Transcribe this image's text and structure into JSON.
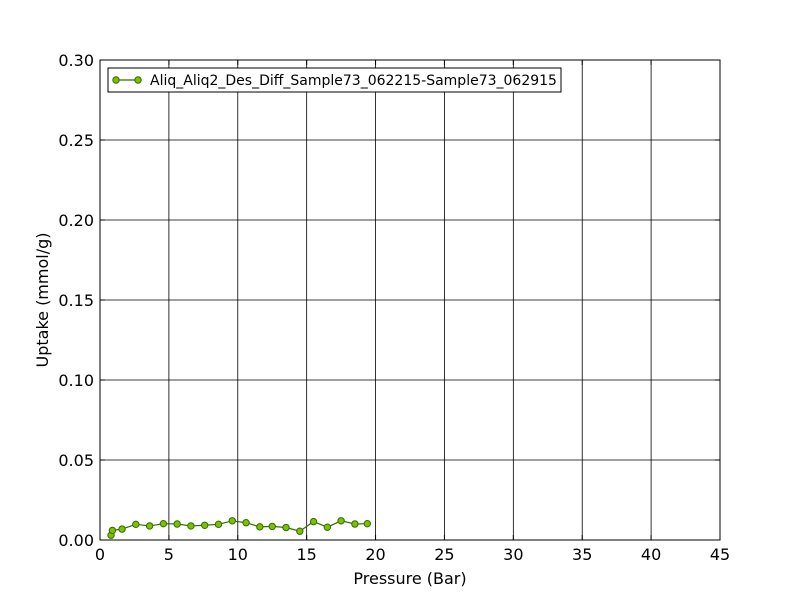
{
  "chart_data": {
    "type": "line",
    "xlabel": "Pressure (Bar)",
    "ylabel": "Uptake (mmol/g)",
    "xlim": [
      0,
      45
    ],
    "ylim": [
      0,
      0.3
    ],
    "xticks": [
      0,
      5,
      10,
      15,
      20,
      25,
      30,
      35,
      40,
      45
    ],
    "yticks": [
      0.0,
      0.05,
      0.1,
      0.15,
      0.2,
      0.25,
      0.3
    ],
    "xtick_labels": [
      "0",
      "5",
      "10",
      "15",
      "20",
      "25",
      "30",
      "35",
      "40",
      "45"
    ],
    "ytick_labels": [
      "0.00",
      "0.05",
      "0.10",
      "0.15",
      "0.20",
      "0.25",
      "0.30"
    ],
    "grid": true,
    "legend_position": "top-left",
    "series": [
      {
        "name": "Aliq_Aliq2_Des_Diff_Sample73_062215-Sample73_062915",
        "color": "#7fbf00",
        "marker_edge": "#2f6f00",
        "x": [
          0.8,
          0.9,
          1.6,
          2.6,
          3.6,
          4.6,
          5.6,
          6.6,
          7.6,
          8.6,
          9.6,
          10.6,
          11.6,
          12.5,
          13.5,
          14.5,
          15.5,
          16.5,
          17.5,
          18.5,
          19.4
        ],
        "y": [
          0.003,
          0.006,
          0.0068,
          0.0098,
          0.0088,
          0.0102,
          0.01,
          0.0088,
          0.0092,
          0.0098,
          0.012,
          0.0108,
          0.0082,
          0.0085,
          0.0078,
          0.0055,
          0.0115,
          0.008,
          0.012,
          0.01,
          0.0102
        ]
      }
    ]
  }
}
